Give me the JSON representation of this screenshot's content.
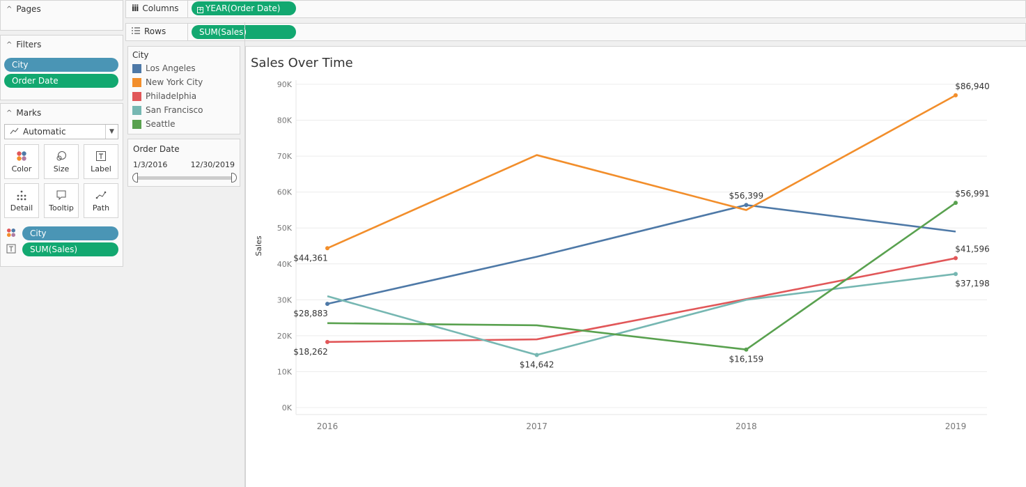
{
  "pages": {
    "title": "Pages"
  },
  "filters": {
    "title": "Filters",
    "items": [
      "City",
      "Order Date"
    ]
  },
  "marks": {
    "title": "Marks",
    "type": "Automatic",
    "buttons": [
      "Color",
      "Size",
      "Label",
      "Detail",
      "Tooltip",
      "Path"
    ],
    "fields": [
      "City",
      "SUM(Sales)"
    ]
  },
  "columns": {
    "label": "Columns",
    "pill": "YEAR(Order Date)"
  },
  "rows": {
    "label": "Rows",
    "pill": "SUM(Sales)"
  },
  "legend": {
    "title": "City",
    "items": [
      {
        "label": "Los Angeles",
        "color": "#4e79a7"
      },
      {
        "label": "New York City",
        "color": "#f28e2b"
      },
      {
        "label": "Philadelphia",
        "color": "#e15759"
      },
      {
        "label": "San Francisco",
        "color": "#76b7b2"
      },
      {
        "label": "Seattle",
        "color": "#59a14f"
      }
    ]
  },
  "order_date_filter": {
    "title": "Order Date",
    "start": "1/3/2016",
    "end": "12/30/2019"
  },
  "chart_data": {
    "type": "line",
    "title": "Sales Over Time",
    "xlabel": "",
    "ylabel": "Sales",
    "categories": [
      "2016",
      "2017",
      "2018",
      "2019"
    ],
    "ylim": [
      0,
      90000
    ],
    "yticks": [
      "0K",
      "10K",
      "20K",
      "30K",
      "40K",
      "50K",
      "60K",
      "70K",
      "80K",
      "90K"
    ],
    "grid": true,
    "legend": "left",
    "series": [
      {
        "name": "Los Angeles",
        "color": "#4e79a7",
        "values": [
          28883,
          42000,
          56399,
          49000
        ],
        "labels": [
          "$28,883",
          "",
          "$56,399",
          ""
        ]
      },
      {
        "name": "New York City",
        "color": "#f28e2b",
        "values": [
          44361,
          70300,
          55000,
          86940
        ],
        "labels": [
          "$44,361",
          "",
          "",
          "$86,940"
        ]
      },
      {
        "name": "Philadelphia",
        "color": "#e15759",
        "values": [
          18262,
          19000,
          30200,
          41596
        ],
        "labels": [
          "$18,262",
          "",
          "",
          "$41,596"
        ]
      },
      {
        "name": "San Francisco",
        "color": "#76b7b2",
        "values": [
          31000,
          14642,
          30000,
          37198
        ],
        "labels": [
          "",
          "$14,642",
          "",
          "$37,198"
        ]
      },
      {
        "name": "Seattle",
        "color": "#59a14f",
        "values": [
          23500,
          22900,
          16159,
          56991
        ],
        "labels": [
          "",
          "",
          "$16,159",
          "$56,991"
        ]
      }
    ]
  }
}
